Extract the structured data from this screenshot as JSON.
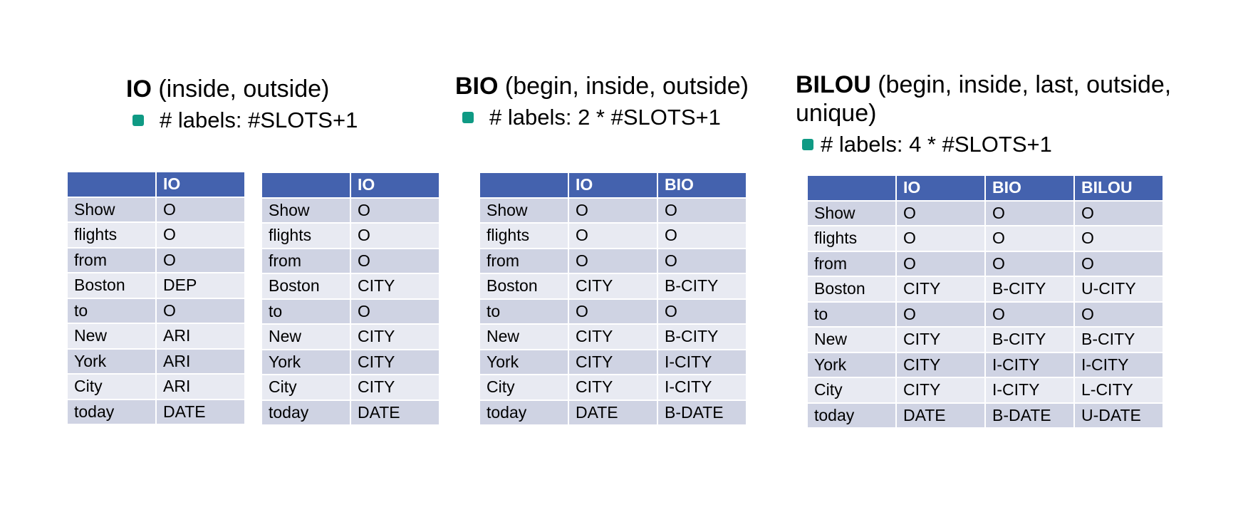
{
  "sections": {
    "io": {
      "title": "IO",
      "description": " (inside, outside)",
      "bullet": "# labels: #SLOTS+1"
    },
    "bio": {
      "title": "BIO",
      "description": " (begin, inside, outside)",
      "bullet": "# labels: 2 * #SLOTS+1"
    },
    "bilou": {
      "title": "BILOU",
      "description_line1": " (begin, inside, last, outside,",
      "description_line2": "unique)",
      "bullet": "# labels: 4 * #SLOTS+1"
    }
  },
  "tables": {
    "table1": {
      "headers": [
        "",
        "IO"
      ],
      "rows": [
        [
          "Show",
          "O"
        ],
        [
          "flights",
          "O"
        ],
        [
          "from",
          "O"
        ],
        [
          "Boston",
          "DEP"
        ],
        [
          "to",
          "O"
        ],
        [
          "New",
          "ARI"
        ],
        [
          "York",
          "ARI"
        ],
        [
          "City",
          "ARI"
        ],
        [
          "today",
          "DATE"
        ]
      ]
    },
    "table2": {
      "headers": [
        "",
        "IO"
      ],
      "rows": [
        [
          "Show",
          "O"
        ],
        [
          "flights",
          "O"
        ],
        [
          "from",
          "O"
        ],
        [
          "Boston",
          "CITY"
        ],
        [
          "to",
          "O"
        ],
        [
          "New",
          "CITY"
        ],
        [
          "York",
          "CITY"
        ],
        [
          "City",
          "CITY"
        ],
        [
          "today",
          "DATE"
        ]
      ]
    },
    "table3": {
      "headers": [
        "",
        "IO",
        "BIO"
      ],
      "rows": [
        [
          "Show",
          "O",
          "O"
        ],
        [
          "flights",
          "O",
          "O"
        ],
        [
          "from",
          "O",
          "O"
        ],
        [
          "Boston",
          "CITY",
          "B-CITY"
        ],
        [
          "to",
          "O",
          "O"
        ],
        [
          "New",
          "CITY",
          "B-CITY"
        ],
        [
          "York",
          "CITY",
          "I-CITY"
        ],
        [
          "City",
          "CITY",
          "I-CITY"
        ],
        [
          "today",
          "DATE",
          "B-DATE"
        ]
      ]
    },
    "table4": {
      "headers": [
        "",
        "IO",
        "BIO",
        "BILOU"
      ],
      "rows": [
        [
          "Show",
          "O",
          "O",
          "O"
        ],
        [
          "flights",
          "O",
          "O",
          "O"
        ],
        [
          "from",
          "O",
          "O",
          "O"
        ],
        [
          "Boston",
          "CITY",
          "B-CITY",
          "U-CITY"
        ],
        [
          "to",
          "O",
          "O",
          "O"
        ],
        [
          "New",
          "CITY",
          "B-CITY",
          "B-CITY"
        ],
        [
          "York",
          "CITY",
          "I-CITY",
          "I-CITY"
        ],
        [
          "City",
          "CITY",
          "I-CITY",
          "L-CITY"
        ],
        [
          "today",
          "DATE",
          "B-DATE",
          "U-DATE"
        ]
      ]
    }
  },
  "colors": {
    "header_fill": "#4462ae",
    "row_fill_dark": "#cfd3e3",
    "row_fill_light": "#e8eaf2",
    "bullet": "#0f9a84"
  }
}
